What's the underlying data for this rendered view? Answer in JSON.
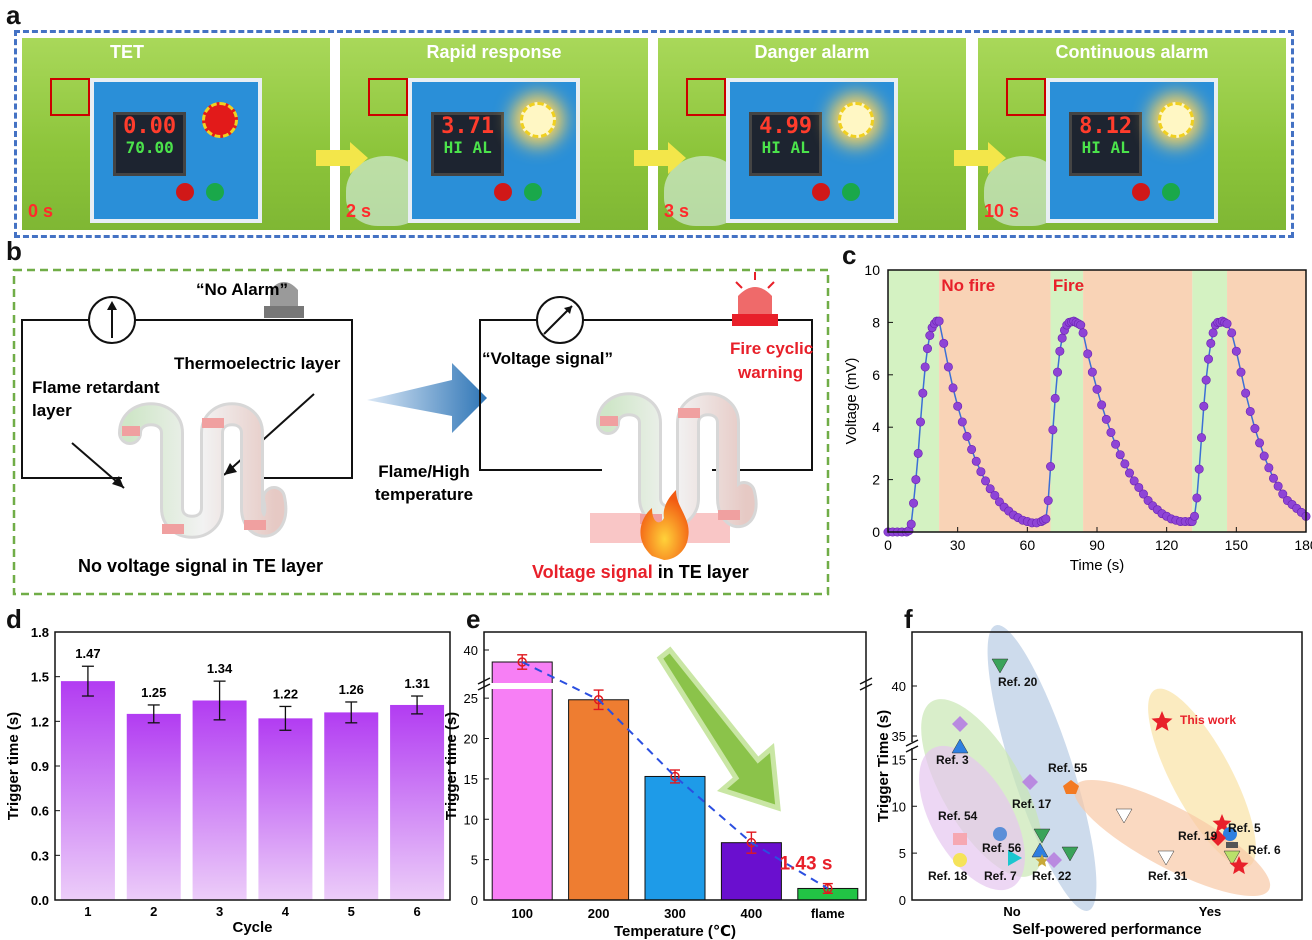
{
  "panel_labels": {
    "a": "a",
    "b": "b",
    "c": "c",
    "d": "d",
    "e": "e",
    "f": "f"
  },
  "panel_a": {
    "photos": [
      {
        "title": "TET",
        "time": "0 s",
        "meter_top": "0.00",
        "meter_bottom": "70.00",
        "lamp_on": false
      },
      {
        "title": "Rapid response",
        "time": "2 s",
        "meter_top": "3.71",
        "meter_bottom": "HI AL",
        "lamp_on": true
      },
      {
        "title": "Danger alarm",
        "time": "3 s",
        "meter_top": "4.99",
        "meter_bottom": "HI AL",
        "lamp_on": true
      },
      {
        "title": "Continuous alarm",
        "time": "10 s",
        "meter_top": "8.12",
        "meter_bottom": "HI AL",
        "lamp_on": true
      }
    ]
  },
  "panel_b": {
    "no_alarm": "“No Alarm”",
    "thermoelectric_layer": "Thermoelectric layer",
    "flame_retardant_1": "Flame retardant",
    "flame_retardant_2": "layer",
    "no_voltage": "No voltage signal in TE layer",
    "flame_high_1": "Flame/High",
    "flame_high_2": "temperature",
    "voltage_signal_quote": "“Voltage signal”",
    "fire_cyclic_1": "Fire cyclic",
    "fire_cyclic_2": "warning",
    "voltage_signal_red": "Voltage signal",
    "in_te_layer": " in TE layer",
    "colors": {
      "frame": "#70ad47",
      "red": "#e8202a",
      "arrow": "#2e75b6"
    }
  },
  "chart_data": [
    {
      "id": "c",
      "type": "line",
      "xlabel": "Time (s)",
      "ylabel": "Voltage (mV)",
      "xlim": [
        0,
        180
      ],
      "ylim": [
        0,
        10
      ],
      "xticks": [
        0,
        30,
        60,
        90,
        120,
        150,
        180
      ],
      "yticks": [
        0,
        2,
        4,
        6,
        8,
        10
      ],
      "annotations": [
        "No fire",
        "Fire"
      ],
      "fire_bands": [
        [
          0,
          22
        ],
        [
          70,
          84
        ],
        [
          131,
          146
        ]
      ],
      "nofire_bands": [
        [
          22,
          70
        ],
        [
          84,
          131
        ],
        [
          146,
          180
        ]
      ],
      "series": [
        {
          "color": "#8e44d6",
          "x": [
            0,
            2,
            4,
            6,
            8,
            9,
            10,
            11,
            12,
            13,
            14,
            15,
            16,
            17,
            18,
            19,
            20,
            21,
            22,
            24,
            26,
            28,
            30,
            32,
            34,
            36,
            38,
            40,
            42,
            44,
            46,
            48,
            50,
            52,
            54,
            56,
            58,
            60,
            62,
            64,
            66,
            67,
            68,
            69,
            70,
            71,
            72,
            73,
            74,
            75,
            76,
            77,
            78,
            79,
            80,
            81,
            82,
            83,
            84,
            86,
            88,
            90,
            92,
            94,
            96,
            98,
            100,
            102,
            104,
            106,
            108,
            110,
            112,
            114,
            116,
            118,
            120,
            122,
            124,
            126,
            128,
            130,
            131,
            132,
            133,
            134,
            135,
            136,
            137,
            138,
            139,
            140,
            141,
            142,
            143,
            144,
            145,
            146,
            148,
            150,
            152,
            154,
            156,
            158,
            160,
            162,
            164,
            166,
            168,
            170,
            172,
            174,
            176,
            178,
            180
          ],
          "y": [
            0,
            0,
            0,
            0,
            0,
            0.05,
            0.3,
            1.1,
            2.0,
            3.0,
            4.2,
            5.3,
            6.3,
            7.0,
            7.5,
            7.8,
            7.95,
            8.05,
            8.05,
            7.2,
            6.3,
            5.5,
            4.8,
            4.2,
            3.65,
            3.15,
            2.7,
            2.3,
            1.95,
            1.65,
            1.4,
            1.15,
            0.95,
            0.8,
            0.65,
            0.55,
            0.45,
            0.4,
            0.35,
            0.35,
            0.4,
            0.45,
            0.5,
            1.2,
            2.5,
            3.9,
            5.1,
            6.1,
            6.9,
            7.4,
            7.7,
            7.9,
            8.0,
            8.02,
            8.05,
            8.0,
            7.95,
            7.9,
            7.6,
            6.8,
            6.1,
            5.45,
            4.85,
            4.3,
            3.8,
            3.35,
            2.95,
            2.6,
            2.25,
            1.95,
            1.7,
            1.45,
            1.2,
            1.0,
            0.85,
            0.7,
            0.6,
            0.5,
            0.45,
            0.4,
            0.4,
            0.4,
            0.4,
            0.6,
            1.3,
            2.4,
            3.6,
            4.8,
            5.8,
            6.6,
            7.2,
            7.6,
            7.9,
            8.0,
            8.0,
            8.05,
            8.0,
            7.95,
            7.6,
            6.9,
            6.1,
            5.3,
            4.6,
            3.95,
            3.4,
            2.9,
            2.45,
            2.05,
            1.75,
            1.45,
            1.2,
            1.05,
            0.9,
            0.75,
            0.6
          ]
        }
      ]
    },
    {
      "id": "d",
      "type": "bar",
      "xlabel": "Cycle",
      "ylabel": "Trigger time (s)",
      "categories": [
        "1",
        "2",
        "3",
        "4",
        "5",
        "6"
      ],
      "values": [
        1.47,
        1.25,
        1.34,
        1.22,
        1.26,
        1.31
      ],
      "value_labels": [
        "1.47",
        "1.25",
        "1.34",
        "1.22",
        "1.26",
        "1.31"
      ],
      "errors": [
        0.1,
        0.06,
        0.13,
        0.08,
        0.07,
        0.06
      ],
      "ylim": [
        0,
        1.8
      ],
      "yticks": [
        "0.0",
        "0.3",
        "0.6",
        "0.9",
        "1.2",
        "1.5",
        "1.8"
      ],
      "color": "#b44cf0"
    },
    {
      "id": "e",
      "type": "bar",
      "xlabel": "Temperature (℃)",
      "ylabel": "Trigger time (s)",
      "categories": [
        "100",
        "200",
        "300",
        "400",
        "flame"
      ],
      "values": [
        38,
        24.8,
        15.3,
        7.1,
        1.43
      ],
      "errors": [
        1.2,
        1.2,
        0.8,
        1.3,
        0.6
      ],
      "colors": [
        "#f77ff5",
        "#ee7d31",
        "#1e9be8",
        "#6a0fcf",
        "#22c445"
      ],
      "yticks": [
        "0",
        "5",
        "10",
        "15",
        "20",
        "25",
        "40"
      ],
      "annotation": "1.43 s"
    },
    {
      "id": "f",
      "type": "scatter",
      "xlabel": "Self-powered performance",
      "ylabel": "Trigger Time (s)",
      "xcategories": [
        "No",
        "Yes"
      ],
      "yticks": [
        "0",
        "5",
        "10",
        "15",
        "35",
        "40"
      ],
      "labels": [
        "Ref. 20",
        "Ref. 3",
        "Ref. 55",
        "Ref. 17",
        "Ref. 54",
        "Ref. 56",
        "Ref. 18",
        "Ref. 7",
        "Ref. 22",
        "This work",
        "Ref. 5",
        "Ref. 19",
        "Ref. 6",
        "Ref. 31"
      ]
    }
  ]
}
